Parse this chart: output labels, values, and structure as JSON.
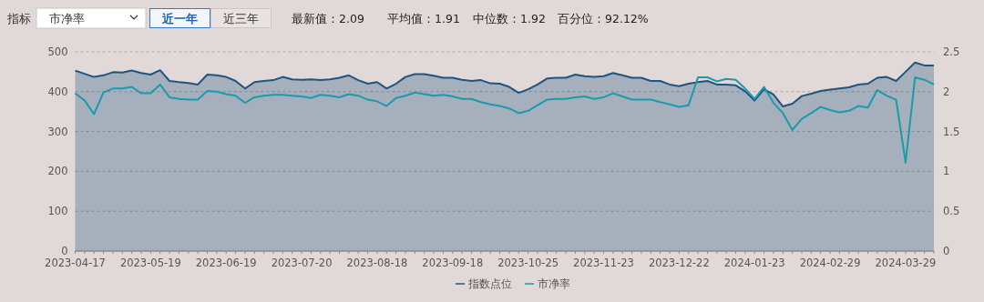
{
  "chart_data": {
    "type": "area",
    "annotations": [
      "指标",
      "市净率",
      "近一年",
      "近三年",
      "最新值：2.09",
      "平均值：1.91",
      "中位数：1.92",
      "百分位：92.12%"
    ],
    "categories": [
      "2023-04-17",
      null,
      null,
      null,
      null,
      null,
      null,
      null,
      "2023-05-19",
      null,
      null,
      null,
      null,
      null,
      null,
      null,
      "2023-06-19",
      null,
      null,
      null,
      null,
      null,
      null,
      null,
      "2023-07-20",
      null,
      null,
      null,
      null,
      null,
      null,
      null,
      "2023-08-18",
      null,
      null,
      null,
      null,
      null,
      null,
      null,
      "2023-09-18",
      null,
      null,
      null,
      null,
      null,
      null,
      null,
      "2023-10-25",
      null,
      null,
      null,
      null,
      null,
      null,
      null,
      "2023-11-23",
      null,
      null,
      null,
      null,
      null,
      null,
      null,
      "2023-12-22",
      null,
      null,
      null,
      null,
      null,
      null,
      null,
      "2024-01-23",
      null,
      null,
      null,
      null,
      null,
      null,
      null,
      "2024-02-29",
      null,
      null,
      null,
      null,
      null,
      null,
      null,
      "2024-03-29",
      null,
      null,
      null
    ],
    "series": [
      {
        "name": "指数点位",
        "color": "#1f5480",
        "values": [
          453,
          445,
          437,
          441,
          449,
          448,
          453,
          447,
          443,
          454,
          427,
          424,
          422,
          418,
          443,
          441,
          437,
          427,
          408,
          424,
          427,
          429,
          437,
          431,
          430,
          431,
          429,
          431,
          435,
          441,
          429,
          420,
          424,
          408,
          420,
          437,
          444,
          444,
          440,
          435,
          435,
          430,
          427,
          429,
          421,
          420,
          412,
          397,
          406,
          418,
          433,
          435,
          435,
          443,
          439,
          437,
          439,
          447,
          441,
          435,
          435,
          427,
          427,
          418,
          414,
          420,
          424,
          427,
          418,
          418,
          416,
          401,
          378,
          406,
          393,
          363,
          370,
          389,
          395,
          402,
          405,
          408,
          411,
          418,
          420,
          435,
          437,
          427,
          450,
          473,
          466,
          466
        ]
      },
      {
        "name": "市净率",
        "type": "line",
        "axis": "y2",
        "color": "#1a9bab",
        "values": [
          1.98,
          1.89,
          1.72,
          1.99,
          2.04,
          2.04,
          2.06,
          1.98,
          1.98,
          2.09,
          1.93,
          1.91,
          1.9,
          1.9,
          2.01,
          2.0,
          1.97,
          1.95,
          1.86,
          1.93,
          1.95,
          1.96,
          1.96,
          1.95,
          1.94,
          1.92,
          1.96,
          1.95,
          1.93,
          1.97,
          1.95,
          1.9,
          1.88,
          1.82,
          1.92,
          1.95,
          1.99,
          1.97,
          1.95,
          1.96,
          1.94,
          1.91,
          1.91,
          1.87,
          1.84,
          1.82,
          1.79,
          1.73,
          1.76,
          1.83,
          1.9,
          1.91,
          1.91,
          1.93,
          1.94,
          1.91,
          1.93,
          1.98,
          1.94,
          1.9,
          1.9,
          1.9,
          1.87,
          1.84,
          1.81,
          1.83,
          2.18,
          2.18,
          2.13,
          2.16,
          2.15,
          2.04,
          1.91,
          2.06,
          1.86,
          1.73,
          1.52,
          1.66,
          1.73,
          1.81,
          1.77,
          1.74,
          1.76,
          1.82,
          1.8,
          2.02,
          1.95,
          1.9,
          1.11,
          2.18,
          2.15,
          2.09
        ]
      }
    ],
    "ylim": [
      0,
      500
    ],
    "yticks": [
      0,
      100,
      200,
      300,
      400,
      500
    ],
    "y2lim": [
      0,
      2.5
    ],
    "y2ticks": [
      0,
      0.5,
      1,
      1.5,
      2,
      2.5
    ],
    "grid": "y",
    "legend": "bottom",
    "marker": "none",
    "line_style": "solid"
  }
}
